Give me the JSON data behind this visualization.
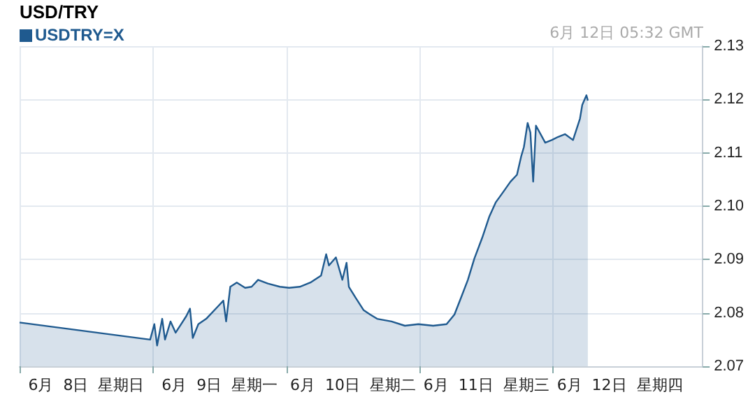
{
  "chart_data": {
    "type": "area",
    "title": "USD/TRY",
    "annotations": [
      "6月 12日 05:32 GMT"
    ],
    "xlim": [
      "--06-08",
      "--06-13T02:55"
    ],
    "xticks": [
      {
        "value": "--06-08",
        "label": null
      },
      {
        "value": "--06-08T12:00",
        "label": "6月  8日  星期日"
      },
      {
        "value": "--06-09",
        "label": null
      },
      {
        "value": "--06-09T12:00",
        "label": "6月  9日  星期一"
      },
      {
        "value": "--06-10",
        "label": null
      },
      {
        "value": "--06-10T12:00",
        "label": "6月  10日  星期二"
      },
      {
        "value": "--06-11",
        "label": null
      },
      {
        "value": "--06-11T12:00",
        "label": "6月  11日  星期三"
      },
      {
        "value": "--06-12",
        "label": null
      },
      {
        "value": "--06-12T12:00",
        "label": "6月  12日  星期四"
      }
    ],
    "ylim": [
      2.07,
      2.13
    ],
    "yticks": [
      2.07,
      2.08,
      2.09,
      {
        "value": 2.1,
        "label": "2.10"
      },
      2.11,
      2.12,
      2.13
    ],
    "grid": true,
    "legend": "top left",
    "series": [
      {
        "name": "USDTRY=X",
        "color": "#1f5a8f",
        "x": [
          "--06-08T00:00",
          "--06-08T23:30",
          "--06-09T00:15",
          "--06-09T00:45",
          "--06-09T01:40",
          "--06-09T02:10",
          "--06-09T03:10",
          "--06-09T04:05",
          "--06-09T06:00",
          "--06-09T06:40",
          "--06-09T07:10",
          "--06-09T08:10",
          "--06-09T09:35",
          "--06-09T11:30",
          "--06-09T12:40",
          "--06-09T13:10",
          "--06-09T13:55",
          "--06-09T15:05",
          "--06-09T16:35",
          "--06-09T17:45",
          "--06-09T18:55",
          "--06-09T20:40",
          "--06-09T22:50",
          "--06-10T00:30",
          "--06-10T02:25",
          "--06-10T04:20",
          "--06-10T06:15",
          "--06-10T07:10",
          "--06-10T07:40",
          "--06-10T08:55",
          "--06-10T10:05",
          "--06-10T10:50",
          "--06-10T11:15",
          "--06-10T12:30",
          "--06-10T13:55",
          "--06-10T15:05",
          "--06-10T16:20",
          "--06-10T18:55",
          "--06-10T21:20",
          "--06-10T23:45",
          "--06-11T02:25",
          "--06-11T04:50",
          "--06-11T06:15",
          "--06-11T07:25",
          "--06-11T08:40",
          "--06-11T09:50",
          "--06-11T11:15",
          "--06-11T12:30",
          "--06-11T13:40",
          "--06-11T14:55",
          "--06-11T16:20",
          "--06-11T17:30",
          "--06-11T18:15",
          "--06-11T18:45",
          "--06-11T19:25",
          "--06-11T19:55",
          "--06-11T20:25",
          "--06-11T20:55",
          "--06-11T22:35",
          "--06-11T23:45",
          "--06-12T00:55",
          "--06-12T02:10",
          "--06-12T03:35",
          "--06-12T04:50",
          "--06-12T05:15",
          "--06-12T06:00",
          "--06-12T06:15"
        ],
        "values": [
          2.0782,
          2.075,
          2.0779,
          2.0739,
          2.0789,
          2.075,
          2.0784,
          2.0763,
          2.0794,
          2.0808,
          2.0753,
          2.0779,
          2.0789,
          2.081,
          2.0823,
          2.0784,
          2.0849,
          2.0857,
          2.0847,
          2.0849,
          2.0862,
          2.0855,
          2.0849,
          2.0847,
          2.0849,
          2.0857,
          2.087,
          2.091,
          2.0889,
          2.0904,
          2.0862,
          2.0894,
          2.0849,
          2.0828,
          2.0805,
          2.0797,
          2.0789,
          2.0784,
          2.0776,
          2.0779,
          2.0776,
          2.0779,
          2.0797,
          2.0828,
          2.0862,
          2.0902,
          2.0941,
          2.098,
          2.1007,
          2.1025,
          2.1046,
          2.1059,
          2.1093,
          2.1111,
          2.1156,
          2.1138,
          2.1046,
          2.1151,
          2.1119,
          2.1124,
          2.113,
          2.1135,
          2.1124,
          2.1164,
          2.119,
          2.1208,
          2.1198
        ]
      }
    ]
  }
}
